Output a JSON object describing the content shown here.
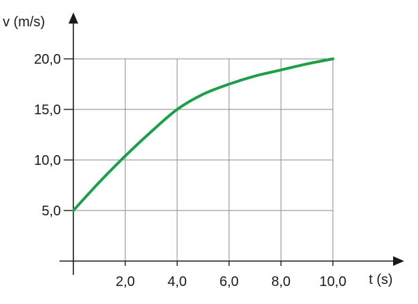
{
  "chart_data": {
    "type": "line",
    "xlabel": "t (s)",
    "ylabel": "v (m/s)",
    "xlim": [
      0,
      10
    ],
    "ylim": [
      0,
      20
    ],
    "grid": true,
    "x_ticks": [
      2,
      4,
      6,
      8,
      10
    ],
    "x_tick_labels": [
      "2,0",
      "4,0",
      "6,0",
      "8,0",
      "10,0"
    ],
    "y_ticks": [
      5,
      10,
      15,
      20
    ],
    "y_tick_labels": [
      "5,0",
      "10,0",
      "15,0",
      "20,0"
    ],
    "series": [
      {
        "color": "#1f9e4a",
        "x": [
          0,
          1,
          2,
          3,
          4,
          5,
          6,
          7,
          8,
          9,
          10
        ],
        "y": [
          5.0,
          7.8,
          10.4,
          12.8,
          15.0,
          16.5,
          17.5,
          18.3,
          18.9,
          19.5,
          20.0
        ]
      }
    ]
  }
}
